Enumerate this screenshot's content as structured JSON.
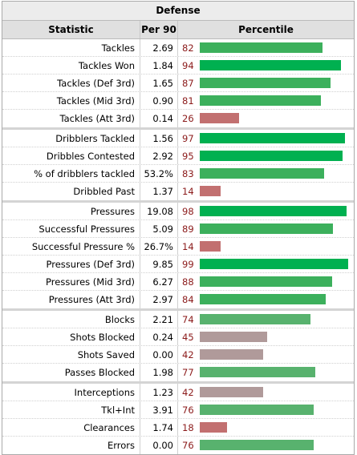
{
  "title": "Defense",
  "headers": [
    "Statistic",
    "Per 90",
    "Percentile"
  ],
  "colors": {
    "high": "#00b050",
    "mid_high": "#3cb05c",
    "mid_low": "#58b26e",
    "average": "#b09a9a",
    "low": "#c27070"
  },
  "chart_data": {
    "type": "bar",
    "title": "Defense",
    "xlim": [
      0,
      100
    ],
    "groups": [
      {
        "rows": [
          {
            "stat": "Tackles",
            "per90": "2.69",
            "percentile": 82
          },
          {
            "stat": "Tackles Won",
            "per90": "1.84",
            "percentile": 94
          },
          {
            "stat": "Tackles (Def 3rd)",
            "per90": "1.65",
            "percentile": 87
          },
          {
            "stat": "Tackles (Mid 3rd)",
            "per90": "0.90",
            "percentile": 81
          },
          {
            "stat": "Tackles (Att 3rd)",
            "per90": "0.14",
            "percentile": 26
          }
        ]
      },
      {
        "rows": [
          {
            "stat": "Dribblers Tackled",
            "per90": "1.56",
            "percentile": 97
          },
          {
            "stat": "Dribbles Contested",
            "per90": "2.92",
            "percentile": 95
          },
          {
            "stat": "% of dribblers tackled",
            "per90": "53.2%",
            "percentile": 83
          },
          {
            "stat": "Dribbled Past",
            "per90": "1.37",
            "percentile": 14
          }
        ]
      },
      {
        "rows": [
          {
            "stat": "Pressures",
            "per90": "19.08",
            "percentile": 98
          },
          {
            "stat": "Successful Pressures",
            "per90": "5.09",
            "percentile": 89
          },
          {
            "stat": "Successful Pressure %",
            "per90": "26.7%",
            "percentile": 14
          },
          {
            "stat": "Pressures (Def 3rd)",
            "per90": "9.85",
            "percentile": 99
          },
          {
            "stat": "Pressures (Mid 3rd)",
            "per90": "6.27",
            "percentile": 88
          },
          {
            "stat": "Pressures (Att 3rd)",
            "per90": "2.97",
            "percentile": 84
          }
        ]
      },
      {
        "rows": [
          {
            "stat": "Blocks",
            "per90": "2.21",
            "percentile": 74
          },
          {
            "stat": "Shots Blocked",
            "per90": "0.24",
            "percentile": 45
          },
          {
            "stat": "Shots Saved",
            "per90": "0.00",
            "percentile": 42
          },
          {
            "stat": "Passes Blocked",
            "per90": "1.98",
            "percentile": 77
          }
        ]
      },
      {
        "rows": [
          {
            "stat": "Interceptions",
            "per90": "1.23",
            "percentile": 42
          },
          {
            "stat": "Tkl+Int",
            "per90": "3.91",
            "percentile": 76
          },
          {
            "stat": "Clearances",
            "per90": "1.74",
            "percentile": 18
          },
          {
            "stat": "Errors",
            "per90": "0.00",
            "percentile": 76
          }
        ]
      }
    ]
  }
}
